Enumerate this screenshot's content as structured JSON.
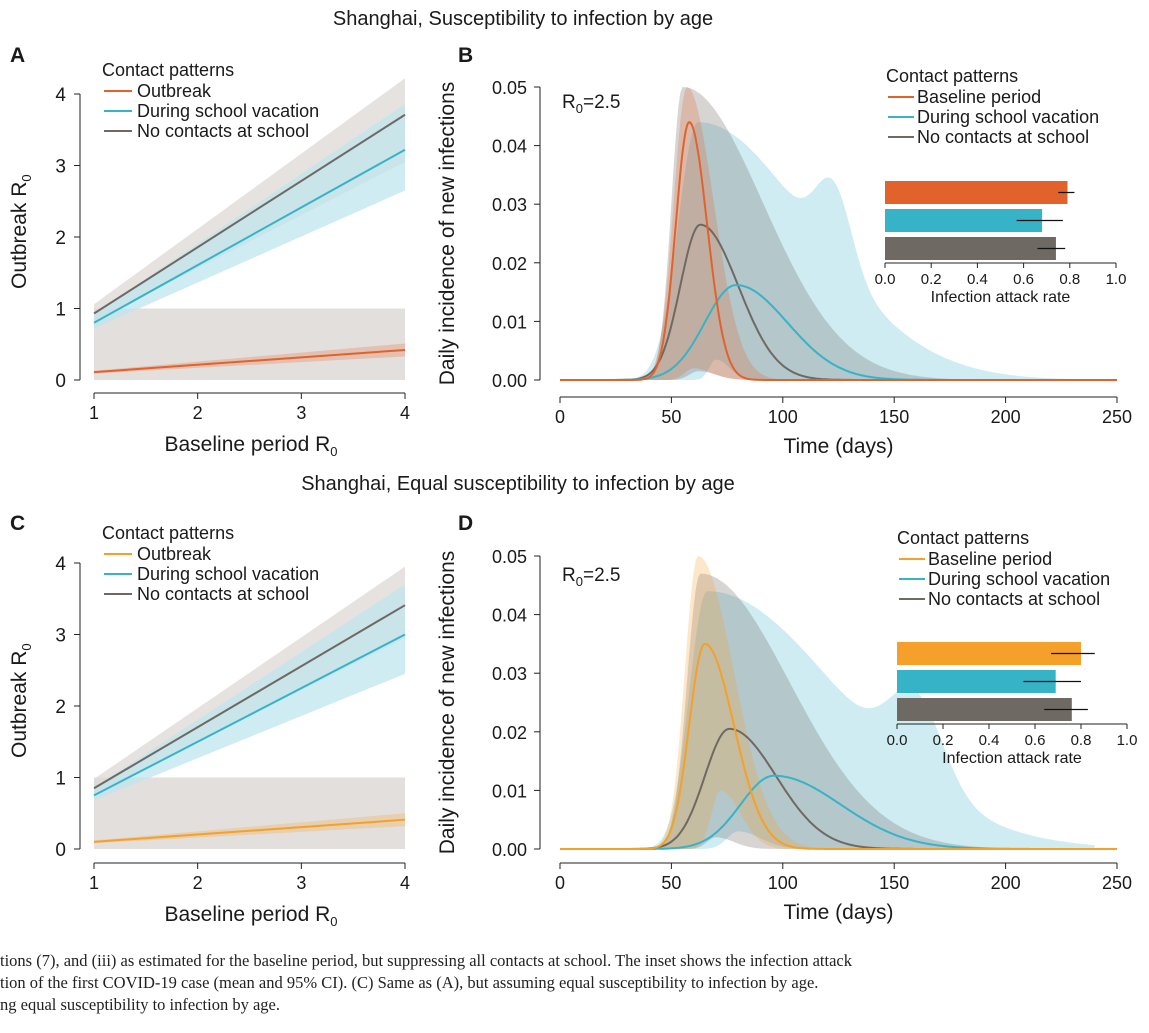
{
  "colors": {
    "outbreak_orange": "#e2622b",
    "outbreak_yellow": "#f5a02a",
    "vacation": "#37b3c8",
    "no_school": "#6f6963",
    "grey_band": "#ddd8d5",
    "vacation_band": "#bfe6ee"
  },
  "rows": [
    {
      "title": "Shanghai, Susceptibility to infection by age",
      "left_panel": {
        "letter": "A",
        "legend_title": "Contact patterns",
        "legend": [
          "Outbreak",
          "During school vacation",
          "No contacts at school"
        ]
      },
      "right_panel": {
        "letter": "B",
        "r0_label": "R",
        "r0_sub": "0",
        "r0_value": "=2.5",
        "legend_title": "Contact patterns",
        "legend": [
          "Baseline period",
          "During school vacation",
          "No contacts at school"
        ]
      }
    },
    {
      "title": "Shanghai, Equal susceptibility to infection by age",
      "left_panel": {
        "letter": "C",
        "legend_title": "Contact patterns",
        "legend": [
          "Outbreak",
          "During school vacation",
          "No contacts at school"
        ]
      },
      "right_panel": {
        "letter": "D",
        "r0_label": "R",
        "r0_sub": "0",
        "r0_value": "=2.5",
        "legend_title": "Contact patterns",
        "legend": [
          "Baseline period",
          "During school vacation",
          "No contacts at school"
        ]
      }
    }
  ],
  "chart_data": [
    {
      "panel": "A",
      "type": "line",
      "xlabel": "Baseline period R",
      "xlabel_sub": "0",
      "ylabel": "Outbreak R",
      "ylabel_sub": "0",
      "xlim": [
        1,
        4
      ],
      "ylim": [
        0,
        4
      ],
      "xticks": [
        1,
        2,
        3,
        4
      ],
      "yticks": [
        0,
        1,
        2,
        3,
        4
      ],
      "threshold_band": [
        0,
        1
      ],
      "series": [
        {
          "name": "Outbreak",
          "x": [
            1,
            4
          ],
          "y": [
            0.11,
            0.42
          ],
          "lower": [
            0.09,
            0.33
          ],
          "upper": [
            0.13,
            0.51
          ]
        },
        {
          "name": "During school vacation",
          "x": [
            1,
            4
          ],
          "y": [
            0.8,
            3.22
          ],
          "lower": [
            0.72,
            2.65
          ],
          "upper": [
            0.93,
            3.86
          ]
        },
        {
          "name": "No contacts at school",
          "x": [
            1,
            4
          ],
          "y": [
            0.93,
            3.71
          ],
          "lower": [
            0.82,
            3.05
          ],
          "upper": [
            1.06,
            4.22
          ]
        }
      ]
    },
    {
      "panel": "B",
      "type": "line",
      "xlabel": "Time (days)",
      "ylabel": "Daily incidence of new infections",
      "xlim": [
        0,
        250
      ],
      "ylim": [
        0,
        0.05
      ],
      "xticks": [
        0,
        50,
        100,
        150,
        200,
        250
      ],
      "yticks": [
        "0.00",
        "0.01",
        "0.02",
        "0.03",
        "0.04",
        "0.05"
      ],
      "series": [
        {
          "name": "Baseline period",
          "peak_day": 58,
          "peak": 0.044
        },
        {
          "name": "During school vacation",
          "peak_day": 79,
          "peak": 0.0162
        },
        {
          "name": "No contacts at school",
          "peak_day": 63,
          "peak": 0.0265
        }
      ],
      "inset": {
        "type": "bar",
        "xlabel": "Infection attack rate",
        "xlim": [
          0,
          1
        ],
        "xticks": [
          "0.0",
          "0.2",
          "0.4",
          "0.6",
          "0.8",
          "1.0"
        ],
        "bars": [
          {
            "name": "Baseline period",
            "mean": 0.79,
            "ci": [
              0.75,
              0.82
            ]
          },
          {
            "name": "During school vacation",
            "mean": 0.68,
            "ci": [
              0.57,
              0.77
            ]
          },
          {
            "name": "No contacts at school",
            "mean": 0.74,
            "ci": [
              0.66,
              0.78
            ]
          }
        ]
      }
    },
    {
      "panel": "C",
      "type": "line",
      "xlabel": "Baseline period R",
      "xlabel_sub": "0",
      "ylabel": "Outbreak R",
      "ylabel_sub": "0",
      "xlim": [
        1,
        4
      ],
      "ylim": [
        0,
        4
      ],
      "xticks": [
        1,
        2,
        3,
        4
      ],
      "yticks": [
        0,
        1,
        2,
        3,
        4
      ],
      "threshold_band": [
        0,
        1
      ],
      "series": [
        {
          "name": "Outbreak",
          "x": [
            1,
            4
          ],
          "y": [
            0.1,
            0.41
          ],
          "lower": [
            0.08,
            0.32
          ],
          "upper": [
            0.12,
            0.5
          ]
        },
        {
          "name": "During school vacation",
          "x": [
            1,
            4
          ],
          "y": [
            0.75,
            3.0
          ],
          "lower": [
            0.68,
            2.45
          ],
          "upper": [
            0.86,
            3.7
          ]
        },
        {
          "name": "No contacts at school",
          "x": [
            1,
            4
          ],
          "y": [
            0.85,
            3.41
          ],
          "lower": [
            0.76,
            2.95
          ],
          "upper": [
            0.98,
            3.95
          ]
        }
      ]
    },
    {
      "panel": "D",
      "type": "line",
      "xlabel": "Time (days)",
      "ylabel": "Daily incidence of new infections",
      "xlim": [
        0,
        250
      ],
      "ylim": [
        0,
        0.05
      ],
      "xticks": [
        0,
        50,
        100,
        150,
        200,
        250
      ],
      "yticks": [
        "0.00",
        "0.01",
        "0.02",
        "0.03",
        "0.04",
        "0.05"
      ],
      "series": [
        {
          "name": "Baseline period",
          "peak_day": 65,
          "peak": 0.035
        },
        {
          "name": "During school vacation",
          "peak_day": 96,
          "peak": 0.0125
        },
        {
          "name": "No contacts at school",
          "peak_day": 76,
          "peak": 0.0205
        }
      ],
      "inset": {
        "type": "bar",
        "xlabel": "Infection attack rate",
        "xlim": [
          0,
          1
        ],
        "xticks": [
          "0.0",
          "0.2",
          "0.4",
          "0.6",
          "0.8",
          "1.0"
        ],
        "bars": [
          {
            "name": "Baseline period",
            "mean": 0.8,
            "ci": [
              0.67,
              0.86
            ]
          },
          {
            "name": "During school vacation",
            "mean": 0.69,
            "ci": [
              0.55,
              0.8
            ]
          },
          {
            "name": "No contacts at school",
            "mean": 0.76,
            "ci": [
              0.64,
              0.83
            ]
          }
        ]
      }
    }
  ],
  "caption": [
    "tions (7), and (iii) as estimated for the baseline period, but suppressing all contacts at school. The inset shows the infection attack",
    "tion of the first COVID-19 case (mean and 95% CI). (C) Same as (A), but assuming equal susceptibility to infection by age.",
    "ng equal susceptibility to infection by age."
  ]
}
